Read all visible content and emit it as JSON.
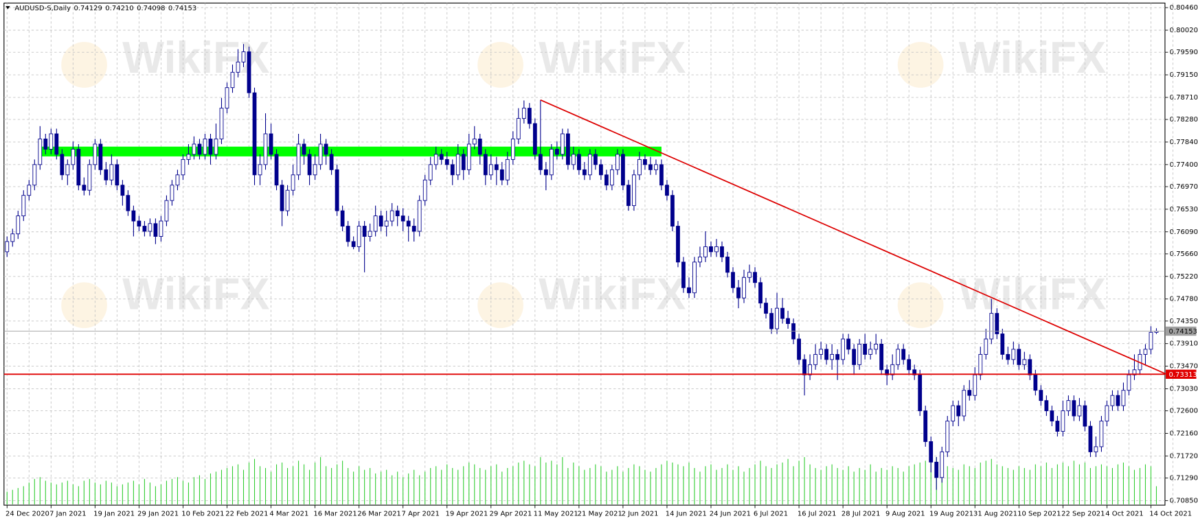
{
  "chart_data": {
    "type": "candlestick",
    "header": {
      "symbol": "AUDUSD-S,Daily",
      "values": [
        "0.74129",
        "0.74210",
        "0.74098",
        "0.74153"
      ]
    },
    "watermark": "WikiFX",
    "ylim": [
      0.7085,
      0.8046
    ],
    "yticks": [
      {
        "value": 0.8046,
        "label": "0.80460"
      },
      {
        "value": 0.8002,
        "label": "0.80020"
      },
      {
        "value": 0.7959,
        "label": "0.79590"
      },
      {
        "value": 0.7915,
        "label": "0.79150"
      },
      {
        "value": 0.7871,
        "label": "0.78710"
      },
      {
        "value": 0.7828,
        "label": "0.78280"
      },
      {
        "value": 0.7784,
        "label": "0.77840"
      },
      {
        "value": 0.774,
        "label": "0.77400"
      },
      {
        "value": 0.7697,
        "label": "0.76970"
      },
      {
        "value": 0.7653,
        "label": "0.76530"
      },
      {
        "value": 0.7609,
        "label": "0.76090"
      },
      {
        "value": 0.7566,
        "label": "0.75660"
      },
      {
        "value": 0.7522,
        "label": "0.75220"
      },
      {
        "value": 0.7478,
        "label": "0.74780"
      },
      {
        "value": 0.7435,
        "label": "0.74350"
      },
      {
        "value": 0.7391,
        "label": "0.73910"
      },
      {
        "value": 0.7347,
        "label": "0.73470"
      },
      {
        "value": 0.7303,
        "label": "0.73030"
      },
      {
        "value": 0.726,
        "label": "0.72600"
      },
      {
        "value": 0.7216,
        "label": "0.72160"
      },
      {
        "value": 0.7172,
        "label": "0.71720"
      },
      {
        "value": 0.7129,
        "label": "0.71290"
      },
      {
        "value": 0.7085,
        "label": "0.70850"
      }
    ],
    "grid": true,
    "colors": {
      "candle": "#00008c",
      "volume": "#32cd32",
      "grid": "#c4c4c4"
    },
    "categories": [
      "24 Dec 2020",
      null,
      null,
      null,
      null,
      null,
      null,
      null,
      "7 Jan 2021",
      null,
      null,
      null,
      null,
      null,
      null,
      null,
      "19 Jan 2021",
      null,
      null,
      null,
      null,
      null,
      null,
      null,
      "29 Jan 2021",
      null,
      null,
      null,
      null,
      null,
      null,
      null,
      "10 Feb 2021",
      null,
      null,
      null,
      null,
      null,
      null,
      null,
      "22 Feb 2021",
      null,
      null,
      null,
      null,
      null,
      null,
      null,
      "4 Mar 2021",
      null,
      null,
      null,
      null,
      null,
      null,
      null,
      "16 Mar 2021",
      null,
      null,
      null,
      null,
      null,
      null,
      null,
      "26 Mar 2021",
      null,
      null,
      null,
      null,
      null,
      null,
      null,
      "7 Apr 2021",
      null,
      null,
      null,
      null,
      null,
      null,
      null,
      "19 Apr 2021",
      null,
      null,
      null,
      null,
      null,
      null,
      null,
      "29 Apr 2021",
      null,
      null,
      null,
      null,
      null,
      null,
      null,
      "11 May 2021",
      null,
      null,
      null,
      null,
      null,
      null,
      null,
      "21 May 2021",
      null,
      null,
      null,
      null,
      null,
      null,
      null,
      "2 Jun 2021",
      null,
      null,
      null,
      null,
      null,
      null,
      null,
      "14 Jun 2021",
      null,
      null,
      null,
      null,
      null,
      null,
      null,
      "24 Jun 2021",
      null,
      null,
      null,
      null,
      null,
      null,
      null,
      "6 Jul 2021",
      null,
      null,
      null,
      null,
      null,
      null,
      null,
      "16 Jul 2021",
      null,
      null,
      null,
      null,
      null,
      null,
      null,
      "28 Jul 2021",
      null,
      null,
      null,
      null,
      null,
      null,
      null,
      "9 Aug 2021",
      null,
      null,
      null,
      null,
      null,
      null,
      null,
      "19 Aug 2021",
      null,
      null,
      null,
      null,
      null,
      null,
      null,
      "31 Aug 2021",
      null,
      null,
      null,
      null,
      null,
      null,
      null,
      "10 Sep 2021",
      null,
      null,
      null,
      null,
      null,
      null,
      null,
      "22 Sep 2021",
      null,
      null,
      null,
      null,
      null,
      null,
      null,
      "4 Oct 2021",
      null,
      null,
      null,
      null,
      null,
      null,
      null,
      "14 Oct 2021",
      null
    ],
    "open": [
      0.757,
      0.759,
      0.7605,
      0.764,
      0.768,
      0.77,
      0.774,
      0.779,
      0.777,
      0.78,
      0.776,
      0.772,
      0.774,
      0.777,
      0.77,
      0.769,
      0.774,
      0.778,
      0.773,
      0.771,
      0.774,
      0.77,
      0.768,
      0.765,
      0.763,
      0.762,
      0.761,
      0.7625,
      0.76,
      0.763,
      0.767,
      0.77,
      0.772,
      0.775,
      0.776,
      0.778,
      0.776,
      0.779,
      0.776,
      0.779,
      0.785,
      0.789,
      0.792,
      0.794,
      0.796,
      0.788,
      0.772,
      0.774,
      0.78,
      0.776,
      0.77,
      0.765,
      0.769,
      0.772,
      0.778,
      0.776,
      0.772,
      0.774,
      0.778,
      0.776,
      0.773,
      0.765,
      0.762,
      0.759,
      0.758,
      0.762,
      0.76,
      0.761,
      0.764,
      0.762,
      0.763,
      0.765,
      0.764,
      0.763,
      0.762,
      0.761,
      0.767,
      0.771,
      0.774,
      0.776,
      0.775,
      0.774,
      0.772,
      0.776,
      0.773,
      0.778,
      0.779,
      0.776,
      0.772,
      0.774,
      0.773,
      0.771,
      0.775,
      0.779,
      0.783,
      0.785,
      0.782,
      0.776,
      0.773,
      0.772,
      0.777,
      0.776,
      0.78,
      0.774,
      0.776,
      0.773,
      0.772,
      0.776,
      0.774,
      0.772,
      0.77,
      0.773,
      0.776,
      0.77,
      0.766,
      0.772,
      0.775,
      0.774,
      0.773,
      0.774,
      0.77,
      0.768,
      0.762,
      0.755,
      0.75,
      0.749,
      0.755,
      0.756,
      0.758,
      0.757,
      0.758,
      0.756,
      0.753,
      0.75,
      0.748,
      0.752,
      0.753,
      0.751,
      0.747,
      0.745,
      0.742,
      0.746,
      0.744,
      0.743,
      0.74,
      0.736,
      0.733,
      0.735,
      0.737,
      0.738,
      0.736,
      0.737,
      0.736,
      0.74,
      0.738,
      0.735,
      0.739,
      0.737,
      0.738,
      0.739,
      0.734,
      0.733,
      0.735,
      0.738,
      0.736,
      0.734,
      0.733,
      0.726,
      0.72,
      0.716,
      0.713,
      0.718,
      0.724,
      0.727,
      0.725,
      0.73,
      0.729,
      0.733,
      0.737,
      0.74,
      0.745,
      0.741,
      0.737,
      0.736,
      0.738,
      0.735,
      0.736,
      0.733,
      0.73,
      0.728,
      0.726,
      0.724,
      0.722,
      0.726,
      0.728,
      0.725,
      0.727,
      0.723,
      0.718,
      0.719,
      0.724,
      0.727,
      0.729,
      0.727,
      0.73,
      0.733,
      0.734,
      0.737,
      0.738,
      0.74129
    ],
    "high": [
      0.76,
      0.7615,
      0.765,
      0.769,
      0.771,
      0.775,
      0.7815,
      0.78,
      0.781,
      0.781,
      0.777,
      0.775,
      0.7785,
      0.778,
      0.7715,
      0.775,
      0.779,
      0.779,
      0.7745,
      0.776,
      0.775,
      0.771,
      0.769,
      0.766,
      0.764,
      0.763,
      0.7635,
      0.7635,
      0.764,
      0.768,
      0.771,
      0.773,
      0.776,
      0.778,
      0.7795,
      0.779,
      0.78,
      0.78,
      0.782,
      0.787,
      0.79,
      0.7935,
      0.7965,
      0.7975,
      0.797,
      0.789,
      0.776,
      0.784,
      0.782,
      0.777,
      0.771,
      0.77,
      0.774,
      0.78,
      0.779,
      0.777,
      0.776,
      0.78,
      0.779,
      0.777,
      0.774,
      0.766,
      0.763,
      0.76,
      0.763,
      0.763,
      0.7625,
      0.766,
      0.765,
      0.765,
      0.7665,
      0.766,
      0.7655,
      0.764,
      0.7635,
      0.768,
      0.772,
      0.7755,
      0.7775,
      0.777,
      0.7765,
      0.775,
      0.778,
      0.777,
      0.78,
      0.7815,
      0.78,
      0.777,
      0.776,
      0.7755,
      0.7745,
      0.7765,
      0.7805,
      0.785,
      0.7865,
      0.786,
      0.783,
      0.7866,
      0.7745,
      0.778,
      0.7785,
      0.781,
      0.781,
      0.7775,
      0.777,
      0.7745,
      0.777,
      0.777,
      0.775,
      0.773,
      0.774,
      0.777,
      0.777,
      0.771,
      0.773,
      0.7765,
      0.776,
      0.7755,
      0.775,
      0.775,
      0.771,
      0.769,
      0.763,
      0.756,
      0.752,
      0.756,
      0.758,
      0.761,
      0.759,
      0.7595,
      0.759,
      0.757,
      0.754,
      0.7515,
      0.7535,
      0.7545,
      0.754,
      0.752,
      0.748,
      0.746,
      0.749,
      0.748,
      0.7455,
      0.744,
      0.741,
      0.737,
      0.737,
      0.739,
      0.7395,
      0.739,
      0.739,
      0.738,
      0.741,
      0.741,
      0.739,
      0.74,
      0.741,
      0.7395,
      0.741,
      0.74,
      0.735,
      0.737,
      0.739,
      0.739,
      0.737,
      0.735,
      0.734,
      0.727,
      0.721,
      0.717,
      0.719,
      0.725,
      0.728,
      0.728,
      0.731,
      0.732,
      0.7345,
      0.7385,
      0.742,
      0.7478,
      0.746,
      0.742,
      0.7385,
      0.7395,
      0.739,
      0.7375,
      0.737,
      0.734,
      0.731,
      0.729,
      0.727,
      0.725,
      0.728,
      0.729,
      0.729,
      0.7285,
      0.728,
      0.724,
      0.721,
      0.725,
      0.728,
      0.73,
      0.73,
      0.7315,
      0.734,
      0.737,
      0.738,
      0.739,
      0.7425,
      0.7421
    ],
    "low": [
      0.756,
      0.758,
      0.7595,
      0.763,
      0.767,
      0.769,
      0.773,
      0.776,
      0.776,
      0.775,
      0.771,
      0.77,
      0.773,
      0.769,
      0.768,
      0.768,
      0.773,
      0.772,
      0.77,
      0.77,
      0.769,
      0.766,
      0.764,
      0.76,
      0.761,
      0.76,
      0.76,
      0.7585,
      0.759,
      0.762,
      0.766,
      0.769,
      0.771,
      0.774,
      0.775,
      0.775,
      0.775,
      0.774,
      0.775,
      0.778,
      0.784,
      0.788,
      0.791,
      0.793,
      0.787,
      0.77,
      0.77,
      0.773,
      0.775,
      0.769,
      0.762,
      0.764,
      0.768,
      0.771,
      0.774,
      0.77,
      0.771,
      0.773,
      0.774,
      0.772,
      0.764,
      0.761,
      0.758,
      0.7575,
      0.757,
      0.753,
      0.759,
      0.76,
      0.761,
      0.76,
      0.762,
      0.762,
      0.761,
      0.759,
      0.759,
      0.76,
      0.766,
      0.77,
      0.773,
      0.774,
      0.773,
      0.77,
      0.771,
      0.771,
      0.772,
      0.777,
      0.774,
      0.77,
      0.771,
      0.77,
      0.77,
      0.77,
      0.774,
      0.778,
      0.782,
      0.781,
      0.775,
      0.772,
      0.769,
      0.771,
      0.775,
      0.775,
      0.773,
      0.773,
      0.772,
      0.771,
      0.771,
      0.773,
      0.771,
      0.769,
      0.769,
      0.772,
      0.769,
      0.765,
      0.765,
      0.771,
      0.773,
      0.772,
      0.772,
      0.769,
      0.767,
      0.761,
      0.754,
      0.749,
      0.748,
      0.748,
      0.754,
      0.755,
      0.756,
      0.756,
      0.755,
      0.752,
      0.749,
      0.746,
      0.747,
      0.751,
      0.75,
      0.746,
      0.744,
      0.741,
      0.741,
      0.743,
      0.742,
      0.739,
      0.735,
      0.729,
      0.732,
      0.734,
      0.736,
      0.735,
      0.734,
      0.732,
      0.735,
      0.737,
      0.733,
      0.734,
      0.736,
      0.736,
      0.737,
      0.733,
      0.731,
      0.732,
      0.734,
      0.735,
      0.733,
      0.732,
      0.725,
      0.719,
      0.714,
      0.7106,
      0.712,
      0.717,
      0.723,
      0.723,
      0.724,
      0.728,
      0.728,
      0.732,
      0.736,
      0.739,
      0.74,
      0.736,
      0.735,
      0.735,
      0.734,
      0.734,
      0.732,
      0.729,
      0.727,
      0.725,
      0.723,
      0.721,
      0.721,
      0.725,
      0.724,
      0.724,
      0.722,
      0.717,
      0.717,
      0.718,
      0.723,
      0.726,
      0.726,
      0.726,
      0.729,
      0.732,
      0.733,
      0.735,
      0.737,
      0.74098
    ],
    "close": [
      0.759,
      0.7605,
      0.764,
      0.768,
      0.77,
      0.774,
      0.779,
      0.777,
      0.78,
      0.776,
      0.772,
      0.774,
      0.777,
      0.77,
      0.769,
      0.774,
      0.778,
      0.773,
      0.771,
      0.774,
      0.77,
      0.768,
      0.765,
      0.763,
      0.762,
      0.761,
      0.7625,
      0.76,
      0.763,
      0.767,
      0.77,
      0.772,
      0.775,
      0.776,
      0.778,
      0.776,
      0.779,
      0.776,
      0.779,
      0.785,
      0.789,
      0.792,
      0.794,
      0.796,
      0.788,
      0.772,
      0.774,
      0.78,
      0.776,
      0.77,
      0.765,
      0.769,
      0.772,
      0.778,
      0.776,
      0.772,
      0.774,
      0.778,
      0.776,
      0.773,
      0.765,
      0.762,
      0.759,
      0.758,
      0.762,
      0.76,
      0.761,
      0.764,
      0.762,
      0.763,
      0.765,
      0.764,
      0.763,
      0.762,
      0.761,
      0.767,
      0.771,
      0.774,
      0.776,
      0.775,
      0.774,
      0.772,
      0.776,
      0.773,
      0.778,
      0.779,
      0.776,
      0.772,
      0.774,
      0.773,
      0.771,
      0.775,
      0.779,
      0.783,
      0.785,
      0.782,
      0.776,
      0.773,
      0.772,
      0.777,
      0.776,
      0.78,
      0.774,
      0.776,
      0.773,
      0.772,
      0.776,
      0.774,
      0.772,
      0.77,
      0.773,
      0.776,
      0.77,
      0.766,
      0.772,
      0.775,
      0.774,
      0.773,
      0.774,
      0.77,
      0.768,
      0.762,
      0.755,
      0.75,
      0.749,
      0.755,
      0.756,
      0.758,
      0.757,
      0.758,
      0.756,
      0.753,
      0.75,
      0.748,
      0.752,
      0.753,
      0.751,
      0.747,
      0.745,
      0.742,
      0.746,
      0.744,
      0.743,
      0.74,
      0.736,
      0.733,
      0.735,
      0.737,
      0.738,
      0.736,
      0.737,
      0.736,
      0.74,
      0.738,
      0.735,
      0.739,
      0.737,
      0.738,
      0.739,
      0.734,
      0.733,
      0.735,
      0.738,
      0.736,
      0.734,
      0.733,
      0.726,
      0.72,
      0.716,
      0.713,
      0.718,
      0.724,
      0.727,
      0.725,
      0.73,
      0.729,
      0.733,
      0.737,
      0.74,
      0.745,
      0.741,
      0.737,
      0.736,
      0.738,
      0.735,
      0.736,
      0.733,
      0.73,
      0.728,
      0.726,
      0.724,
      0.722,
      0.726,
      0.728,
      0.725,
      0.727,
      0.723,
      0.718,
      0.719,
      0.724,
      0.727,
      0.729,
      0.727,
      0.73,
      0.733,
      0.734,
      0.737,
      0.738,
      0.7413,
      0.74153
    ],
    "volume": [
      14,
      16,
      18,
      20,
      24,
      28,
      30,
      26,
      24,
      22,
      24,
      26,
      22,
      20,
      26,
      28,
      24,
      22,
      26,
      24,
      20,
      22,
      24,
      26,
      22,
      28,
      24,
      20,
      22,
      26,
      28,
      30,
      26,
      24,
      30,
      32,
      28,
      34,
      36,
      38,
      40,
      42,
      44,
      38,
      46,
      50,
      42,
      40,
      36,
      44,
      46,
      40,
      42,
      48,
      44,
      38,
      46,
      52,
      42,
      40,
      44,
      48,
      40,
      36,
      42,
      38,
      40,
      34,
      36,
      38,
      32,
      36,
      30,
      34,
      38,
      32,
      36,
      40,
      42,
      38,
      44,
      40,
      38,
      42,
      46,
      44,
      40,
      38,
      42,
      44,
      36,
      40,
      42,
      46,
      48,
      44,
      42,
      52,
      46,
      48,
      44,
      52,
      40,
      46,
      42,
      38,
      40,
      44,
      42,
      36,
      38,
      42,
      36,
      40,
      44,
      42,
      38,
      36,
      40,
      44,
      48,
      46,
      44,
      42,
      46,
      40,
      36,
      42,
      44,
      38,
      40,
      44,
      38,
      42,
      36,
      40,
      44,
      48,
      42,
      40,
      44,
      46,
      50,
      42,
      48,
      52,
      44,
      40,
      38,
      42,
      44,
      40,
      38,
      42,
      36,
      40,
      38,
      44,
      36,
      40,
      38,
      42,
      40,
      36,
      42,
      44,
      46,
      48,
      50,
      52,
      46,
      42,
      40,
      38,
      44,
      42,
      40,
      46,
      48,
      50,
      44,
      42,
      40,
      38,
      42,
      40,
      38,
      44,
      42,
      46,
      40,
      44,
      46,
      42,
      48,
      44,
      46,
      40,
      42,
      44,
      42,
      40,
      44,
      46,
      42,
      38,
      40,
      44,
      42,
      20
    ],
    "zone": {
      "bars": [
        6,
        119
      ],
      "prices": [
        0.7756,
        0.7775
      ],
      "color": "#00ff00"
    },
    "trendline": {
      "bars": [
        97,
        210.7
      ],
      "prices": [
        0.7866,
        0.7332
      ],
      "color": "#dd0000"
    },
    "price_lines": [
      {
        "value": 0.74153,
        "color": "#a0a0a0"
      },
      {
        "value": 0.73313,
        "color": "#e00000"
      }
    ]
  }
}
